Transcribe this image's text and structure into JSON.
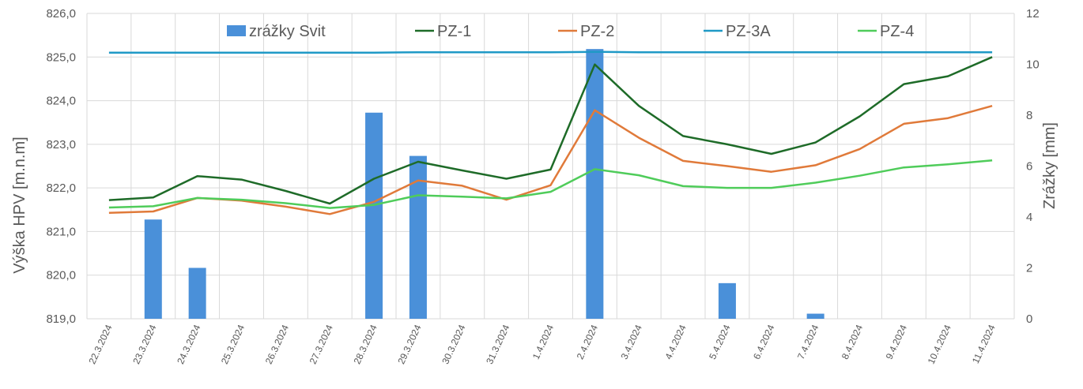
{
  "chart_data": {
    "type": "bar+line",
    "categories": [
      "22.3.2024",
      "23.3.2024",
      "24.3.2024",
      "25.3.2024",
      "26.3.2024",
      "27.3.2024",
      "28.3.2024",
      "29.3.2024",
      "30.3.2024",
      "31.3.2024",
      "1.4.2024",
      "2.4.2024",
      "3.4.2024",
      "4.4.2024",
      "5.4.2024",
      "6.4.2024",
      "7.4.2024",
      "8.4.2024",
      "9.4.2024",
      "10.4.2024",
      "11.4.2024"
    ],
    "ylabel_left": "Výška HPV [m.n.m]",
    "ylabel_right": "Zrážky [mm]",
    "ylim_left": [
      819,
      826
    ],
    "ylim_right": [
      0,
      12
    ],
    "yticks_left": [
      "819,0",
      "820,0",
      "821,0",
      "822,0",
      "823,0",
      "824,0",
      "825,0",
      "826,0"
    ],
    "yticks_right": [
      "0",
      "2",
      "4",
      "6",
      "8",
      "10",
      "12"
    ],
    "grid": true,
    "legend_position": "top",
    "bars": {
      "name": "zrážky Svit",
      "color": "#4a90d9",
      "values": [
        0,
        3.9,
        2.0,
        0,
        0,
        0,
        8.1,
        6.4,
        0,
        0,
        0,
        10.6,
        0,
        0,
        1.4,
        0,
        0.2,
        0,
        0,
        0,
        0
      ]
    },
    "series": [
      {
        "name": "PZ-1",
        "color": "#1e6b28",
        "values": [
          821.72,
          821.78,
          822.27,
          822.19,
          821.93,
          821.64,
          822.21,
          822.6,
          822.4,
          822.21,
          822.42,
          824.83,
          823.88,
          823.19,
          823.0,
          822.78,
          823.04,
          823.64,
          824.38,
          824.56,
          825.0
        ]
      },
      {
        "name": "PZ-2",
        "color": "#e07a3a",
        "values": [
          821.43,
          821.46,
          821.77,
          821.71,
          821.57,
          821.4,
          821.68,
          822.17,
          822.05,
          821.73,
          822.06,
          823.78,
          823.15,
          822.62,
          822.5,
          822.37,
          822.52,
          822.89,
          823.47,
          823.6,
          823.88
        ]
      },
      {
        "name": "PZ-3A",
        "color": "#1f99c6",
        "values": [
          825.1,
          825.1,
          825.1,
          825.1,
          825.1,
          825.1,
          825.1,
          825.11,
          825.11,
          825.11,
          825.11,
          825.12,
          825.11,
          825.11,
          825.11,
          825.11,
          825.11,
          825.11,
          825.11,
          825.11,
          825.11
        ]
      },
      {
        "name": "PZ-4",
        "color": "#4fcc5a",
        "values": [
          821.55,
          821.58,
          821.77,
          821.73,
          821.65,
          821.54,
          821.61,
          821.83,
          821.8,
          821.76,
          821.91,
          822.43,
          822.29,
          822.04,
          822.0,
          822.0,
          822.12,
          822.28,
          822.47,
          822.54,
          822.63
        ]
      }
    ]
  }
}
